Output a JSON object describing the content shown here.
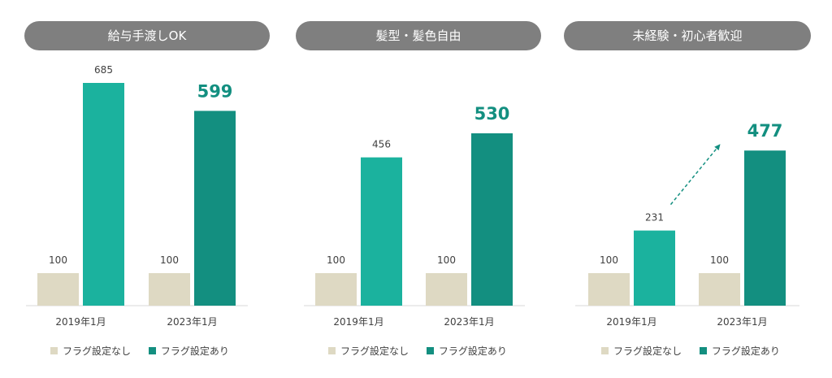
{
  "colors": {
    "without": "#ded9c3",
    "with_2019": "#1bb29e",
    "with_2023": "#138f80",
    "highlight_text": "#138f80",
    "axis": "#d9d9d9"
  },
  "legend": {
    "without": "フラグ設定なし",
    "with": "フラグ設定あり"
  },
  "chart_data": [
    {
      "type": "bar",
      "title": "給与手渡しOK",
      "categories": [
        "2019年1月",
        "2023年1月"
      ],
      "series": [
        {
          "name": "フラグ設定なし",
          "values": [
            100,
            100
          ]
        },
        {
          "name": "フラグ設定あり",
          "values": [
            685,
            599
          ]
        }
      ],
      "ylim": [
        0,
        700
      ],
      "highlight": "599"
    },
    {
      "type": "bar",
      "title": "髪型・髪色自由",
      "categories": [
        "2019年1月",
        "2023年1月"
      ],
      "series": [
        {
          "name": "フラグ設定なし",
          "values": [
            100,
            100
          ]
        },
        {
          "name": "フラグ設定あり",
          "values": [
            456,
            530
          ]
        }
      ],
      "ylim": [
        0,
        700
      ],
      "highlight": "530"
    },
    {
      "type": "bar",
      "title": "未経験・初心者歓迎",
      "categories": [
        "2019年1月",
        "2023年1月"
      ],
      "series": [
        {
          "name": "フラグ設定なし",
          "values": [
            100,
            100
          ]
        },
        {
          "name": "フラグ設定あり",
          "values": [
            231,
            477
          ]
        }
      ],
      "ylim": [
        0,
        700
      ],
      "highlight": "477",
      "trend_arrow": true
    }
  ]
}
